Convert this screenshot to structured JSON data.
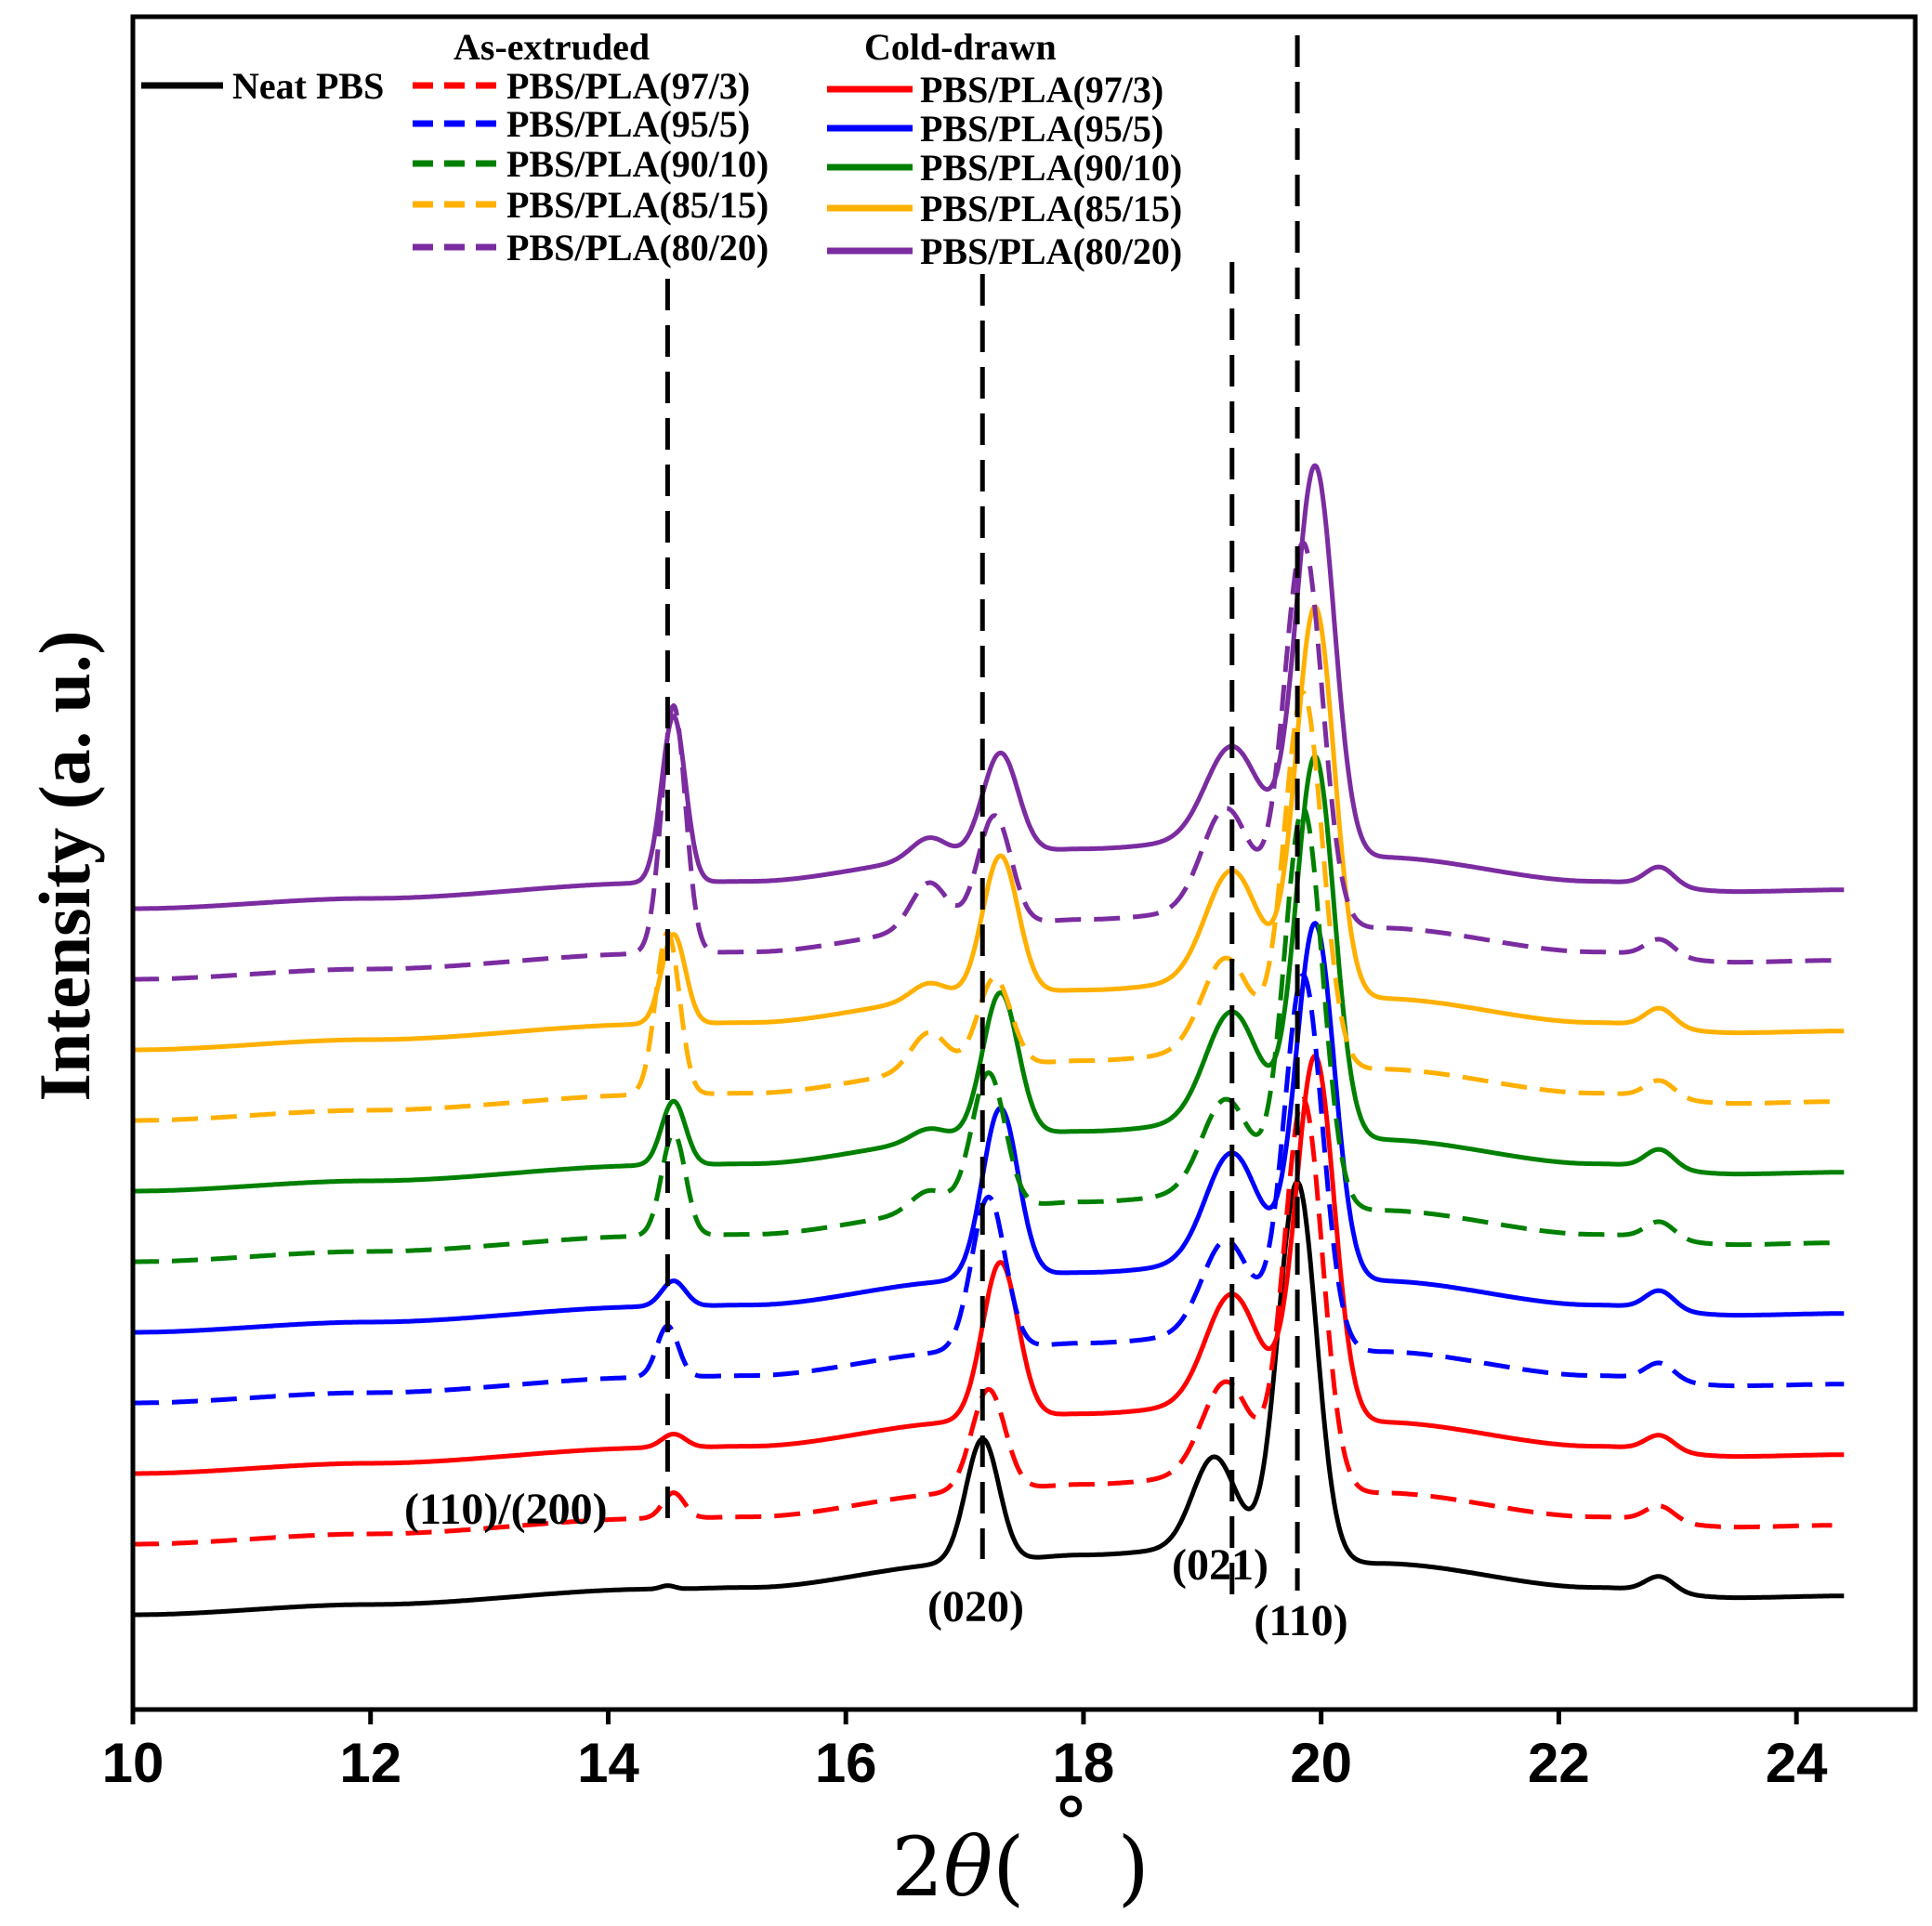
{
  "chart_data": {
    "type": "line",
    "title": "",
    "xlabel": "2θ(°)",
    "xlabel_parts": [
      "2",
      "θ",
      "( ",
      "˚",
      " )"
    ],
    "ylabel": "Intensity (a. u.)",
    "xlim": [
      10,
      25
    ],
    "x_ticks": [
      10,
      12,
      14,
      16,
      18,
      20,
      22,
      24
    ],
    "x_tick_labels": [
      "10",
      "12",
      "14",
      "16",
      "18",
      "20",
      "22",
      "24"
    ],
    "yticks_shown": false,
    "grid": false,
    "legend": {
      "placement": "top-left",
      "headers": [
        "As-extruded",
        "Cold-drawn"
      ],
      "neat_label": "Neat PBS",
      "extruded_labels": [
        "PBS/PLA(97/3)",
        "PBS/PLA(95/5)",
        "PBS/PLA(90/10)",
        "PBS/PLA(85/15)",
        "PBS/PLA(80/20)"
      ],
      "drawn_labels": [
        "PBS/PLA(97/3)",
        "PBS/PLA(95/5)",
        "PBS/PLA(90/10)",
        "PBS/PLA(85/15)",
        "PBS/PLA(80/20)"
      ]
    },
    "reference_lines": [
      {
        "x": 14.5,
        "label": "(110)/(200)"
      },
      {
        "x": 17.15,
        "label": "(020)"
      },
      {
        "x": 19.25,
        "label": "(021)"
      },
      {
        "x": 19.8,
        "label": "(110)"
      }
    ],
    "peaks_note": "Intensity in arbitrary units; profiles offset vertically by stack level",
    "series": [
      {
        "name": "Neat PBS",
        "style": "solid",
        "color": "#000000",
        "level": 0,
        "baseline": [
          [
            10,
            0
          ],
          [
            12,
            0.12
          ],
          [
            14.4,
            0.3
          ],
          [
            15.2,
            0.32
          ],
          [
            17,
            0.6
          ],
          [
            18,
            0.7
          ],
          [
            19.2,
            0.8
          ],
          [
            20.5,
            0.6
          ],
          [
            22.3,
            0.32
          ],
          [
            23.5,
            0.2
          ],
          [
            24.4,
            0.22
          ]
        ],
        "peaks": [
          [
            14.5,
            0.04,
            0.06
          ],
          [
            17.15,
            1.45,
            0.14
          ],
          [
            19.1,
            1.05,
            0.18
          ],
          [
            19.8,
            4.35,
            0.16
          ],
          [
            22.85,
            0.18,
            0.12
          ]
        ]
      },
      {
        "name": "PBS/PLA(97/3)",
        "group": "As-extruded",
        "style": "dashed",
        "color": "#ff0000",
        "level": 1,
        "baseline": [
          [
            10,
            0
          ],
          [
            12,
            0.12
          ],
          [
            14.4,
            0.3
          ],
          [
            15.2,
            0.32
          ],
          [
            17,
            0.6
          ],
          [
            18,
            0.7
          ],
          [
            19.2,
            0.8
          ],
          [
            20.5,
            0.6
          ],
          [
            22.3,
            0.32
          ],
          [
            23.5,
            0.2
          ],
          [
            24.3,
            0.22
          ]
        ],
        "peaks": [
          [
            14.55,
            0.3,
            0.09
          ],
          [
            17.2,
            1.2,
            0.14
          ],
          [
            19.2,
            1.1,
            0.2
          ],
          [
            19.85,
            4.5,
            0.16
          ],
          [
            22.85,
            0.18,
            0.12
          ]
        ]
      },
      {
        "name": "PBS/PLA(97/3)",
        "group": "Cold-drawn",
        "style": "solid",
        "color": "#ff0000",
        "level": 2,
        "baseline": [
          [
            10,
            0
          ],
          [
            12,
            0.12
          ],
          [
            14.4,
            0.3
          ],
          [
            15.2,
            0.32
          ],
          [
            17,
            0.6
          ],
          [
            18,
            0.7
          ],
          [
            19.2,
            0.8
          ],
          [
            20.5,
            0.6
          ],
          [
            22.3,
            0.32
          ],
          [
            23.5,
            0.2
          ],
          [
            24.4,
            0.22
          ]
        ],
        "peaks": [
          [
            14.55,
            0.16,
            0.1
          ],
          [
            17.3,
            1.85,
            0.15
          ],
          [
            19.25,
            1.3,
            0.22
          ],
          [
            19.95,
            4.2,
            0.16
          ],
          [
            22.85,
            0.18,
            0.12
          ]
        ]
      },
      {
        "name": "PBS/PLA(95/5)",
        "group": "As-extruded",
        "style": "dashed",
        "color": "#0000ff",
        "level": 3,
        "baseline": [
          [
            10,
            0
          ],
          [
            12,
            0.12
          ],
          [
            14.4,
            0.3
          ],
          [
            15.2,
            0.32
          ],
          [
            17,
            0.6
          ],
          [
            18,
            0.7
          ],
          [
            19.2,
            0.8
          ],
          [
            20.5,
            0.6
          ],
          [
            22.3,
            0.32
          ],
          [
            23.5,
            0.2
          ],
          [
            24.4,
            0.22
          ]
        ],
        "peaks": [
          [
            14.5,
            0.6,
            0.09
          ],
          [
            17.2,
            1.8,
            0.14
          ],
          [
            19.2,
            1.1,
            0.2
          ],
          [
            19.85,
            4.3,
            0.16
          ],
          [
            22.85,
            0.2,
            0.12
          ]
        ]
      },
      {
        "name": "PBS/PLA(95/5)",
        "group": "Cold-drawn",
        "style": "solid",
        "color": "#0000ff",
        "level": 4,
        "baseline": [
          [
            10,
            0
          ],
          [
            12,
            0.12
          ],
          [
            14.4,
            0.3
          ],
          [
            15.2,
            0.32
          ],
          [
            17,
            0.6
          ],
          [
            18,
            0.7
          ],
          [
            19.2,
            0.8
          ],
          [
            20.5,
            0.6
          ],
          [
            22.3,
            0.32
          ],
          [
            23.5,
            0.2
          ],
          [
            24.4,
            0.22
          ]
        ],
        "peaks": [
          [
            14.55,
            0.3,
            0.1
          ],
          [
            17.3,
            2.0,
            0.15
          ],
          [
            19.25,
            1.3,
            0.22
          ],
          [
            19.95,
            4.1,
            0.16
          ],
          [
            22.85,
            0.22,
            0.12
          ]
        ]
      },
      {
        "name": "PBS/PLA(90/10)",
        "group": "As-extruded",
        "style": "dashed",
        "color": "#008000",
        "level": 5,
        "baseline": [
          [
            10,
            0
          ],
          [
            12,
            0.12
          ],
          [
            14.4,
            0.3
          ],
          [
            15.2,
            0.32
          ],
          [
            17,
            0.6
          ],
          [
            18,
            0.7
          ],
          [
            19.2,
            0.8
          ],
          [
            20.5,
            0.6
          ],
          [
            22.3,
            0.32
          ],
          [
            23.5,
            0.2
          ],
          [
            24.3,
            0.22
          ]
        ],
        "peaks": [
          [
            14.55,
            1.2,
            0.1
          ],
          [
            16.7,
            0.25,
            0.15
          ],
          [
            17.2,
            1.6,
            0.14
          ],
          [
            19.2,
            1.1,
            0.2
          ],
          [
            19.85,
            4.6,
            0.16
          ],
          [
            22.85,
            0.2,
            0.12
          ]
        ]
      },
      {
        "name": "PBS/PLA(90/10)",
        "group": "Cold-drawn",
        "style": "solid",
        "color": "#008000",
        "level": 6,
        "baseline": [
          [
            10,
            0
          ],
          [
            12,
            0.12
          ],
          [
            14.4,
            0.3
          ],
          [
            15.2,
            0.32
          ],
          [
            17,
            0.6
          ],
          [
            18,
            0.7
          ],
          [
            19.2,
            0.8
          ],
          [
            20.5,
            0.6
          ],
          [
            22.3,
            0.32
          ],
          [
            23.5,
            0.2
          ],
          [
            24.4,
            0.22
          ]
        ],
        "peaks": [
          [
            14.55,
            0.75,
            0.1
          ],
          [
            16.7,
            0.15,
            0.15
          ],
          [
            17.3,
            1.7,
            0.15
          ],
          [
            19.25,
            1.3,
            0.22
          ],
          [
            19.95,
            4.4,
            0.16
          ],
          [
            22.85,
            0.22,
            0.12
          ]
        ]
      },
      {
        "name": "PBS/PLA(85/15)",
        "group": "As-extruded",
        "style": "dashed",
        "color": "#ffb000",
        "level": 7,
        "baseline": [
          [
            10,
            0
          ],
          [
            12,
            0.12
          ],
          [
            14.4,
            0.3
          ],
          [
            15.2,
            0.32
          ],
          [
            17,
            0.6
          ],
          [
            18,
            0.7
          ],
          [
            19.2,
            0.8
          ],
          [
            20.5,
            0.6
          ],
          [
            22.3,
            0.32
          ],
          [
            23.5,
            0.2
          ],
          [
            24.3,
            0.22
          ]
        ],
        "peaks": [
          [
            14.5,
            1.9,
            0.1
          ],
          [
            16.7,
            0.45,
            0.15
          ],
          [
            17.25,
            1.05,
            0.14
          ],
          [
            19.2,
            1.1,
            0.2
          ],
          [
            19.85,
            4.3,
            0.16
          ],
          [
            22.85,
            0.2,
            0.12
          ]
        ]
      },
      {
        "name": "PBS/PLA(85/15)",
        "group": "Cold-drawn",
        "style": "solid",
        "color": "#ffb000",
        "level": 8,
        "baseline": [
          [
            10,
            0
          ],
          [
            12,
            0.12
          ],
          [
            14.4,
            0.3
          ],
          [
            15.2,
            0.32
          ],
          [
            17,
            0.6
          ],
          [
            18,
            0.7
          ],
          [
            19.2,
            0.8
          ],
          [
            20.5,
            0.6
          ],
          [
            22.3,
            0.32
          ],
          [
            23.5,
            0.2
          ],
          [
            24.4,
            0.22
          ]
        ],
        "peaks": [
          [
            14.55,
            1.05,
            0.1
          ],
          [
            16.7,
            0.2,
            0.15
          ],
          [
            17.3,
            1.65,
            0.15
          ],
          [
            19.25,
            1.3,
            0.22
          ],
          [
            19.95,
            4.5,
            0.16
          ],
          [
            22.85,
            0.22,
            0.12
          ]
        ]
      },
      {
        "name": "PBS/PLA(80/20)",
        "group": "As-extruded",
        "style": "dashed",
        "color": "#7b2ca0",
        "level": 9,
        "baseline": [
          [
            10,
            0
          ],
          [
            12,
            0.12
          ],
          [
            14.4,
            0.3
          ],
          [
            15.2,
            0.32
          ],
          [
            17,
            0.6
          ],
          [
            18,
            0.7
          ],
          [
            19.2,
            0.8
          ],
          [
            20.5,
            0.6
          ],
          [
            22.3,
            0.32
          ],
          [
            23.5,
            0.2
          ],
          [
            24.3,
            0.22
          ]
        ],
        "peaks": [
          [
            14.55,
            2.9,
            0.1
          ],
          [
            16.7,
            0.55,
            0.15
          ],
          [
            17.25,
            1.3,
            0.14
          ],
          [
            19.2,
            1.2,
            0.2
          ],
          [
            19.85,
            4.4,
            0.16
          ],
          [
            22.85,
            0.2,
            0.12
          ]
        ]
      },
      {
        "name": "PBS/PLA(80/20)",
        "group": "Cold-drawn",
        "style": "solid",
        "color": "#7b2ca0",
        "level": 10,
        "baseline": [
          [
            10,
            0
          ],
          [
            12,
            0.12
          ],
          [
            14.4,
            0.3
          ],
          [
            15.2,
            0.32
          ],
          [
            17,
            0.6
          ],
          [
            18,
            0.7
          ],
          [
            19.2,
            0.8
          ],
          [
            20.5,
            0.6
          ],
          [
            22.3,
            0.32
          ],
          [
            23.5,
            0.2
          ],
          [
            24.4,
            0.22
          ]
        ],
        "peaks": [
          [
            14.55,
            1.95,
            0.1
          ],
          [
            16.7,
            0.25,
            0.15
          ],
          [
            17.3,
            1.2,
            0.15
          ],
          [
            19.25,
            1.1,
            0.22
          ],
          [
            19.95,
            4.5,
            0.16
          ],
          [
            22.85,
            0.22,
            0.12
          ]
        ]
      }
    ]
  }
}
